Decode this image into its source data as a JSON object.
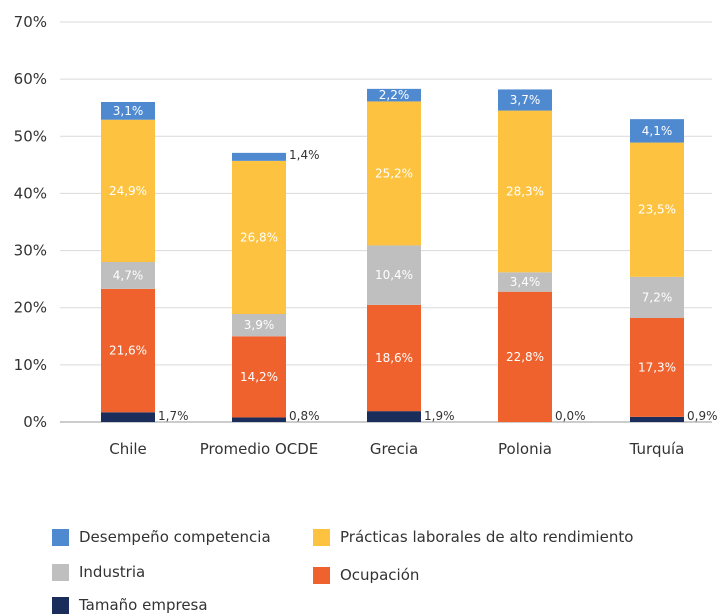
{
  "chart_data": {
    "type": "bar",
    "stacked": true,
    "categories": [
      "Chile",
      "Promedio OCDE",
      "Grecia",
      "Polonia",
      "Turquía"
    ],
    "ylim": [
      0,
      70
    ],
    "yticks": [
      "0%",
      "10%",
      "20%",
      "30%",
      "40%",
      "50%",
      "60%",
      "70%"
    ],
    "grid": true,
    "legend_position": "bottom",
    "series": [
      {
        "name": "Tamaño empresa",
        "color": "#1b2d5b",
        "values": [
          1.7,
          0.8,
          1.9,
          0.0,
          0.9
        ],
        "labels": [
          "1,7%",
          "0,8%",
          "1,9%",
          "0,0%",
          "0,9%"
        ]
      },
      {
        "name": "Ocupación",
        "color": "#f0622d",
        "values": [
          21.6,
          14.2,
          18.6,
          22.8,
          17.3
        ],
        "labels": [
          "21,6%",
          "14,2%",
          "18,6%",
          "22,8%",
          "17,3%"
        ]
      },
      {
        "name": "Industria",
        "color": "#bfbfbf",
        "values": [
          4.7,
          3.9,
          10.4,
          3.4,
          7.2
        ],
        "labels": [
          "4,7%",
          "3,9%",
          "10,4%",
          "3,4%",
          "7,2%"
        ]
      },
      {
        "name": "Prácticas laborales de alto rendimiento",
        "color": "#fdc340",
        "values": [
          24.9,
          26.8,
          25.2,
          28.3,
          23.5
        ],
        "labels": [
          "24,9%",
          "26,8%",
          "25,2%",
          "28,3%",
          "23,5%"
        ]
      },
      {
        "name": "Desempeño competencia",
        "color": "#4f8ad0",
        "values": [
          3.1,
          1.4,
          2.2,
          3.7,
          4.1
        ],
        "labels": [
          "3,1%",
          "1,4%",
          "2,2%",
          "3,7%",
          "4,1%"
        ]
      }
    ]
  },
  "legend": {
    "items": [
      {
        "label": "Desempeño competencia",
        "color": "#4f8ad0"
      },
      {
        "label": "Prácticas laborales de alto rendimiento",
        "color": "#fdc340"
      },
      {
        "label": "Industria",
        "color": "#bfbfbf"
      },
      {
        "label": "Ocupación",
        "color": "#f0622d"
      },
      {
        "label": "Tamaño empresa",
        "color": "#1b2d5b"
      }
    ]
  }
}
